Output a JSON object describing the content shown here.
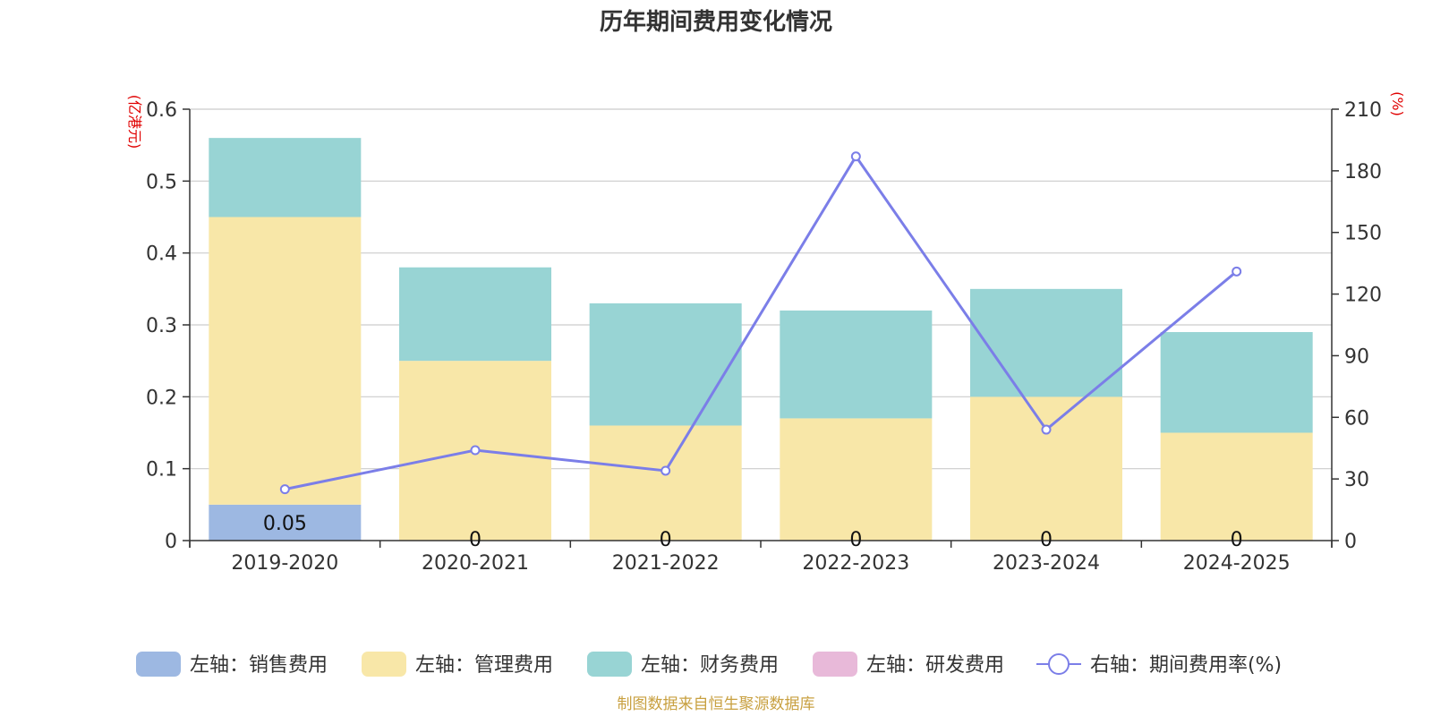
{
  "chart_data": {
    "type": "bar",
    "stacked": true,
    "title": "历年期间费用变化情况",
    "categories": [
      "2019-2020",
      "2020-2021",
      "2021-2022",
      "2022-2023",
      "2023-2024",
      "2024-2025"
    ],
    "left_axis": {
      "unit": "(亿港元)",
      "ylim": [
        0,
        0.6
      ],
      "ticks": [
        "0",
        "0.1",
        "0.2",
        "0.3",
        "0.4",
        "0.5",
        "0.6"
      ]
    },
    "right_axis": {
      "unit": "(%)",
      "ylim": [
        0,
        210
      ],
      "ticks": [
        "0",
        "30",
        "60",
        "90",
        "120",
        "150",
        "180",
        "210"
      ]
    },
    "series": [
      {
        "name": "左轴：销售费用",
        "axis": "left",
        "values": [
          0.05,
          0,
          0,
          0,
          0,
          0
        ],
        "color": "#9db8e2"
      },
      {
        "name": "左轴：管理费用",
        "axis": "left",
        "values": [
          0.4,
          0.25,
          0.16,
          0.17,
          0.2,
          0.15
        ],
        "color": "#f8e7a8"
      },
      {
        "name": "左轴：财务费用",
        "axis": "left",
        "values": [
          0.11,
          0.13,
          0.17,
          0.15,
          0.15,
          0.14
        ],
        "color": "#98d4d4"
      },
      {
        "name": "左轴：研发费用",
        "axis": "left",
        "values": [
          0,
          0,
          0,
          0,
          0,
          0
        ],
        "color": "#e8b9d9"
      }
    ],
    "line_series": {
      "name": "右轴：期间费用率(%)",
      "axis": "right",
      "values": [
        25,
        44,
        34,
        187,
        54,
        131
      ],
      "color": "#7b7ee8"
    },
    "data_labels": [
      "0.05",
      "0",
      "0",
      "0",
      "0",
      "0"
    ],
    "grid": true,
    "legend_position": "bottom"
  },
  "footer": {
    "source": "制图数据来自恒生聚源数据库",
    "source_color": "#c8a040"
  }
}
